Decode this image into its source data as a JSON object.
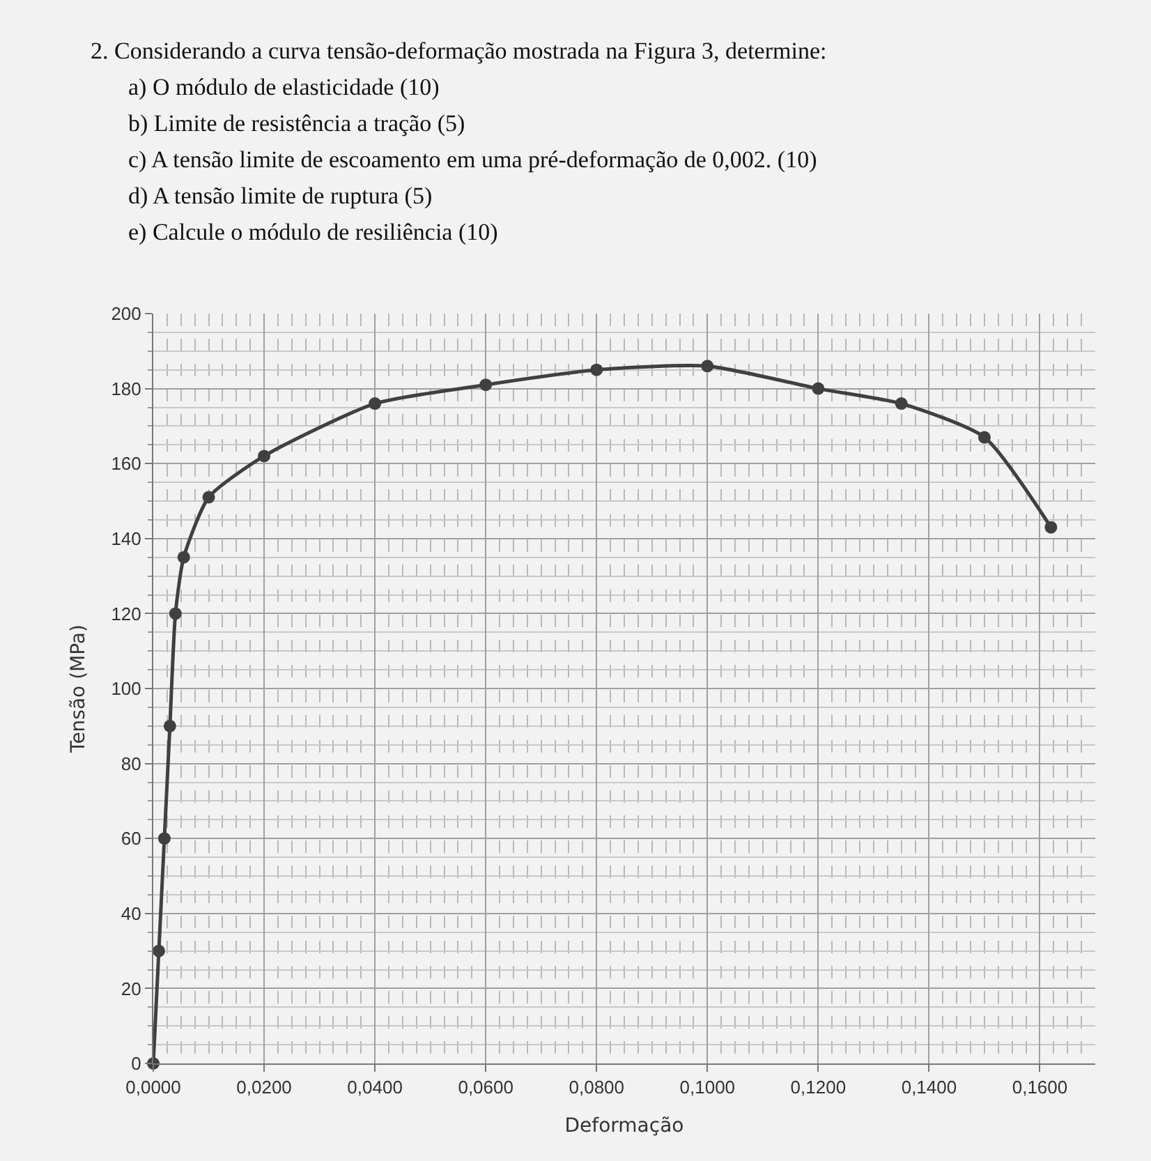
{
  "chart_data": {
    "type": "line",
    "title": "2. Considerando a curva tensão-deformação mostrada na Figura 3, determine:",
    "annotations": [
      "a) O módulo de elasticidade (10)",
      "b) Limite de resistência a tração (5)",
      "c) A tensão limite de escoamento em uma pré-deformação de 0,002. (10)",
      "d) A tensão limite de ruptura (5)",
      "e) Calcule o módulo de resiliência (10)"
    ],
    "xlabel": "Deformação",
    "ylabel": "Tensão (MPa)",
    "x": [
      0,
      0.001,
      0.002,
      0.003,
      0.004,
      0.0055,
      0.01,
      0.02,
      0.04,
      0.06,
      0.08,
      0.1,
      0.12,
      0.135,
      0.15,
      0.162
    ],
    "series": [
      {
        "color": "#404040",
        "values": [
          0,
          30,
          60,
          90,
          120,
          135,
          151,
          162,
          176,
          181,
          185,
          186,
          180,
          176,
          167,
          143
        ]
      }
    ],
    "xlim": [
      0,
      0.17
    ],
    "xticks": [
      {
        "value": 0,
        "label": "0,0000"
      },
      {
        "value": 0.02,
        "label": "0,0200"
      },
      {
        "value": 0.04,
        "label": "0,0400"
      },
      {
        "value": 0.06,
        "label": "0,0600"
      },
      {
        "value": 0.08,
        "label": "0,0800"
      },
      {
        "value": 0.1,
        "label": "0,1000"
      },
      {
        "value": 0.12,
        "label": "0,1200"
      },
      {
        "value": 0.14,
        "label": "0,1400"
      },
      {
        "value": 0.16,
        "label": "0,1600"
      }
    ],
    "ylim": [
      0,
      200
    ],
    "yticks": [
      0,
      20,
      40,
      60,
      80,
      100,
      120,
      140,
      160,
      180,
      200
    ],
    "grid": true,
    "marker": "circle",
    "line_style": "solid"
  }
}
